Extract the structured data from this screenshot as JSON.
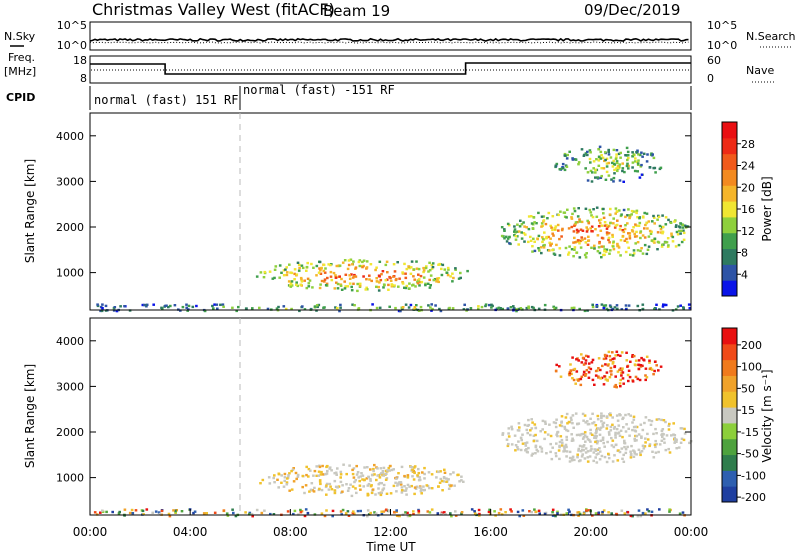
{
  "header": {
    "station": "Christmas Valley West (fitACF)",
    "beam": "Beam 19",
    "date": "09/Dec/2019"
  },
  "side_labels": {
    "nsky": "N.Sky",
    "nsearch": "N.Search",
    "freq_top": "Freq.",
    "freq_unit": "[MHz]",
    "nave": "Nave",
    "cpid": "CPID"
  },
  "noise_axis": {
    "left_ticks": [
      "10^5",
      "10^0"
    ],
    "right_ticks": [
      "10^5",
      "10^0"
    ]
  },
  "freq_axis": {
    "left_ticks": [
      "18",
      "8"
    ],
    "right_ticks": [
      "60",
      "0"
    ]
  },
  "cpid": {
    "segments": [
      {
        "label": "normal (fast) 151 RF",
        "start_hour": 0,
        "end_hour": 6
      },
      {
        "label": "normal (fast) -151 RF",
        "start_hour": 6,
        "end_hour": 24
      }
    ]
  },
  "chart_data": [
    {
      "type": "heatmap",
      "parameter": "power",
      "ylabel": "Slant Range [km]",
      "ylim": [
        180,
        4500
      ],
      "yticks": [
        1000,
        2000,
        3000,
        4000
      ],
      "xlim": [
        0,
        24
      ],
      "colorbar": {
        "label": "Power [dB]",
        "range": [
          0,
          32
        ],
        "tick_labels": [
          "4",
          "8",
          "12",
          "16",
          "20",
          "24",
          "28"
        ],
        "colors": [
          "#0a14e8",
          "#2e54a6",
          "#2e7a60",
          "#3f9f4c",
          "#8ed03c",
          "#f0e632",
          "#f5b52a",
          "#f38a20",
          "#f15a1b",
          "#ee2a16",
          "#ea0f12"
        ]
      },
      "regions": [
        {
          "name": "ground scatter band",
          "t0": 0.1,
          "t1": 24,
          "r0": 180,
          "r1": 330,
          "level": 0.45
        },
        {
          "name": "daytime echo",
          "t0": 6.6,
          "t1": 15.2,
          "r0": 620,
          "r1": 1320,
          "level": 0.85
        },
        {
          "name": "evening echo",
          "t0": 16.3,
          "t1": 24,
          "r0": 1350,
          "r1": 2450,
          "level": 0.8
        },
        {
          "name": "high range echo",
          "t0": 18.5,
          "t1": 22.8,
          "r0": 3000,
          "r1": 3800,
          "level": 0.5
        }
      ]
    },
    {
      "type": "heatmap",
      "parameter": "velocity",
      "ylabel": "Slant Range [km]",
      "ylim": [
        180,
        4500
      ],
      "yticks": [
        1000,
        2000,
        3000,
        4000
      ],
      "xlim": [
        0,
        24
      ],
      "xlabel": "Time UT",
      "xticks": [
        "00:00",
        "04:00",
        "08:00",
        "12:00",
        "16:00",
        "20:00",
        "00:00"
      ],
      "colorbar": {
        "label": "Velocity [m s⁻¹]",
        "tick_labels": [
          "200",
          "100",
          "50",
          "15",
          "-15",
          "-50",
          "-100",
          "-200"
        ],
        "colors": [
          "#1f3fa0",
          "#2e5fb0",
          "#2f7d4c",
          "#4ea23e",
          "#8ccf3a",
          "#c8c8c0",
          "#f0c22c",
          "#f0a22a",
          "#f07a1c",
          "#f04a18",
          "#e81010"
        ]
      },
      "regions": [
        {
          "name": "ground scatter band",
          "t0": 0.1,
          "t1": 24,
          "r0": 180,
          "r1": 330,
          "tone": "mixed"
        },
        {
          "name": "daytime echo",
          "t0": 6.6,
          "t1": 15.2,
          "r0": 620,
          "r1": 1320,
          "tone": "gray-orange"
        },
        {
          "name": "evening echo",
          "t0": 16.3,
          "t1": 24,
          "r0": 1350,
          "r1": 2450,
          "tone": "gray"
        },
        {
          "name": "high range echo",
          "t0": 18.5,
          "t1": 22.8,
          "r0": 3000,
          "r1": 3800,
          "tone": "red-orange"
        }
      ]
    }
  ]
}
